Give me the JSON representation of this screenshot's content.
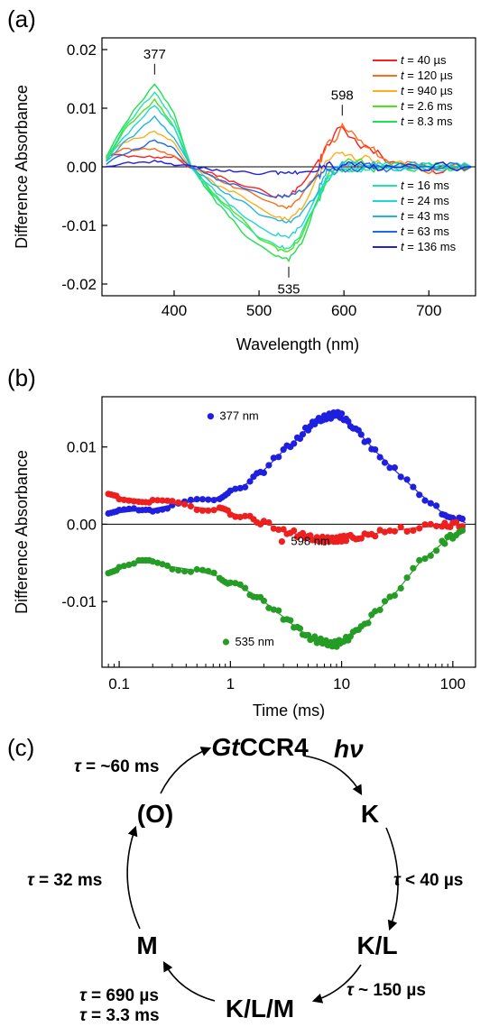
{
  "chart_data": [
    {
      "panel": "(a)",
      "type": "line",
      "xlabel": "Wavelength (nm)",
      "ylabel": "Difference Absorbance",
      "xlim": [
        315,
        755
      ],
      "ylim": [
        -0.022,
        0.022
      ],
      "x_ticks": [
        "400",
        "500",
        "600",
        "700"
      ],
      "x_tick_values": [
        400,
        500,
        600,
        700
      ],
      "y_ticks": [
        "0.02",
        "0.01",
        "0.00",
        "-0.01",
        "-0.02"
      ],
      "y_tick_values": [
        0.02,
        0.01,
        0.0,
        -0.01,
        -0.02
      ],
      "zero_line": true,
      "annotations": [
        {
          "text": "377",
          "x": 377,
          "y": 0.0145
        },
        {
          "text": "598",
          "x": 598,
          "y": 0.0075
        },
        {
          "text": "535",
          "x": 535,
          "y": -0.0158
        }
      ],
      "legend_position": "right",
      "series": [
        {
          "label_t": "t",
          "label_rest": " =  40 µs",
          "color": "#ff1f1f",
          "x": [
            320,
            340,
            377,
            400,
            420,
            450,
            480,
            500,
            520,
            535,
            550,
            570,
            580,
            598,
            620,
            650,
            700,
            750
          ],
          "y": [
            0.002,
            0.002,
            0.0015,
            0.0015,
            0.0,
            -0.0015,
            -0.003,
            -0.004,
            -0.005,
            -0.005,
            -0.003,
            0.001,
            0.004,
            0.007,
            0.004,
            0.001,
            -0.0005,
            0.0
          ]
        },
        {
          "label_t": "t",
          "label_rest": " = 120 µs",
          "color": "#ff6a1a",
          "x": [
            320,
            340,
            377,
            400,
            420,
            450,
            480,
            500,
            520,
            535,
            550,
            570,
            580,
            598,
            620,
            650,
            700,
            750
          ],
          "y": [
            0.002,
            0.003,
            0.003,
            0.002,
            0.0,
            -0.002,
            -0.004,
            -0.005,
            -0.0065,
            -0.007,
            -0.005,
            0.0,
            0.0035,
            0.0065,
            0.004,
            0.001,
            -0.0005,
            0.0
          ]
        },
        {
          "label_t": "t",
          "label_rest": " = 940 µs",
          "color": "#ffae1a",
          "x": [
            320,
            340,
            377,
            400,
            420,
            450,
            480,
            500,
            520,
            535,
            550,
            570,
            580,
            598,
            620,
            650,
            700,
            750
          ],
          "y": [
            0.0015,
            0.004,
            0.006,
            0.004,
            0.0,
            -0.003,
            -0.005,
            -0.007,
            -0.0085,
            -0.009,
            -0.007,
            -0.002,
            0.001,
            0.003,
            0.0015,
            0.0005,
            0.0,
            0.0
          ]
        },
        {
          "label_t": "t",
          "label_rest": " = 2.6 ms",
          "color": "#4be61a",
          "x": [
            320,
            340,
            377,
            400,
            420,
            450,
            480,
            500,
            520,
            535,
            550,
            570,
            580,
            598,
            620,
            650,
            700,
            750
          ],
          "y": [
            0.001,
            0.006,
            0.0115,
            0.007,
            0.0,
            -0.005,
            -0.009,
            -0.012,
            -0.014,
            -0.0145,
            -0.012,
            -0.005,
            -0.002,
            0.0005,
            0.0005,
            0.0,
            0.0,
            0.0
          ]
        },
        {
          "label_t": "t",
          "label_rest": " = 8.3 ms",
          "color": "#1fe050",
          "x": [
            320,
            340,
            377,
            400,
            420,
            450,
            480,
            500,
            520,
            535,
            550,
            570,
            580,
            598,
            620,
            650,
            700,
            750
          ],
          "y": [
            0.0015,
            0.007,
            0.0142,
            0.009,
            0.0,
            -0.006,
            -0.011,
            -0.0135,
            -0.0152,
            -0.0158,
            -0.013,
            -0.006,
            -0.002,
            0.0,
            0.0,
            0.0,
            0.0,
            0.0
          ]
        },
        {
          "label_t": "t",
          "label_rest": " =  16 ms",
          "color": "#1fe6a0",
          "x": [
            320,
            340,
            377,
            400,
            420,
            450,
            480,
            500,
            520,
            535,
            550,
            570,
            580,
            598,
            620,
            650,
            700,
            750
          ],
          "y": [
            0.0015,
            0.0065,
            0.0128,
            0.008,
            0.0,
            -0.0055,
            -0.0095,
            -0.012,
            -0.0135,
            -0.014,
            -0.0115,
            -0.005,
            -0.002,
            0.0,
            0.0,
            0.0,
            0.0,
            0.0
          ]
        },
        {
          "label_t": "t",
          "label_rest": " =  24 ms",
          "color": "#1fd6d6",
          "x": [
            320,
            340,
            377,
            400,
            420,
            450,
            480,
            500,
            520,
            535,
            550,
            570,
            580,
            598,
            620,
            650,
            700,
            750
          ],
          "y": [
            0.001,
            0.005,
            0.0105,
            0.0065,
            0.0,
            -0.0045,
            -0.008,
            -0.0105,
            -0.0115,
            -0.012,
            -0.01,
            -0.0045,
            -0.0015,
            0.0,
            0.0,
            0.0,
            0.0,
            0.0
          ]
        },
        {
          "label_t": "t",
          "label_rest": " =  43 ms",
          "color": "#1fb4e6",
          "x": [
            320,
            340,
            377,
            400,
            420,
            450,
            480,
            500,
            520,
            535,
            550,
            570,
            580,
            598,
            620,
            650,
            700,
            750
          ],
          "y": [
            0.001,
            0.004,
            0.0085,
            0.005,
            0.0,
            -0.0035,
            -0.006,
            -0.008,
            -0.009,
            -0.0095,
            -0.008,
            -0.0035,
            -0.001,
            0.0,
            0.0,
            0.0,
            0.0,
            0.0
          ]
        },
        {
          "label_t": "t",
          "label_rest": " =  63 ms",
          "color": "#1f6ae6",
          "x": [
            320,
            340,
            377,
            400,
            420,
            450,
            480,
            500,
            520,
            535,
            550,
            570,
            580,
            598,
            620,
            650,
            700,
            750
          ],
          "y": [
            0.0005,
            0.002,
            0.0045,
            0.003,
            0.0,
            -0.002,
            -0.0035,
            -0.0045,
            -0.005,
            -0.005,
            -0.004,
            -0.002,
            -0.0005,
            0.0,
            0.0,
            0.0,
            0.0,
            0.0
          ]
        },
        {
          "label_t": "t",
          "label_rest": " = 136 ms",
          "color": "#1f1fe6",
          "x": [
            320,
            340,
            377,
            400,
            420,
            450,
            480,
            500,
            520,
            535,
            550,
            570,
            580,
            598,
            620,
            650,
            700,
            750
          ],
          "y": [
            0.0,
            0.0005,
            0.001,
            0.0005,
            0.0,
            -0.0005,
            -0.001,
            -0.001,
            -0.001,
            -0.001,
            -0.001,
            -0.0005,
            0.0,
            0.0,
            0.0,
            0.0,
            0.0,
            0.0
          ]
        }
      ]
    },
    {
      "panel": "(b)",
      "type": "scatter",
      "xlabel": "Time (ms)",
      "ylabel": "Difference Absorbance",
      "x_scale": "log",
      "xlim": [
        0.07,
        160
      ],
      "ylim": [
        -0.0185,
        0.0165
      ],
      "x_ticks": [
        "0.1",
        "1",
        "10",
        "100"
      ],
      "x_tick_values": [
        0.1,
        1,
        10,
        100
      ],
      "y_ticks": [
        "0.01",
        "0.00",
        "-0.01"
      ],
      "y_tick_values": [
        0.01,
        0.0,
        -0.01
      ],
      "zero_line": true,
      "series": [
        {
          "name": "377 nm",
          "color": "#1f1fe0",
          "x": [
            0.08,
            0.1,
            0.15,
            0.2,
            0.3,
            0.5,
            0.8,
            1,
            1.5,
            2,
            3,
            4,
            5,
            6,
            7,
            8,
            9,
            10,
            12,
            15,
            20,
            30,
            50,
            80,
            100,
            130
          ],
          "y": [
            0.0012,
            0.0015,
            0.0018,
            0.002,
            0.0025,
            0.003,
            0.0035,
            0.004,
            0.0055,
            0.007,
            0.0095,
            0.011,
            0.0125,
            0.0133,
            0.0138,
            0.014,
            0.0142,
            0.014,
            0.013,
            0.0115,
            0.0095,
            0.007,
            0.004,
            0.0015,
            0.0008,
            0.0002
          ]
        },
        {
          "name": "598 nm",
          "color": "#ee1f1f",
          "x": [
            0.08,
            0.1,
            0.15,
            0.2,
            0.3,
            0.5,
            0.8,
            1,
            1.5,
            2,
            3,
            4,
            5,
            6,
            7,
            8,
            9,
            10,
            12,
            15,
            20,
            30,
            50,
            80,
            100,
            130
          ],
          "y": [
            0.0038,
            0.0035,
            0.0032,
            0.003,
            0.0027,
            0.0022,
            0.0018,
            0.0015,
            0.0008,
            0.0002,
            -0.0008,
            -0.0013,
            -0.0017,
            -0.0019,
            -0.002,
            -0.0021,
            -0.002,
            -0.0019,
            -0.0017,
            -0.0015,
            -0.0012,
            -0.0008,
            -0.0004,
            -0.0002,
            -0.0001,
            0.0
          ]
        },
        {
          "name": "535 nm",
          "color": "#259c25",
          "x": [
            0.08,
            0.1,
            0.15,
            0.2,
            0.3,
            0.5,
            0.8,
            1,
            1.5,
            2,
            3,
            4,
            5,
            6,
            7,
            8,
            9,
            10,
            12,
            15,
            20,
            30,
            50,
            80,
            100,
            130
          ],
          "y": [
            -0.006,
            -0.0055,
            -0.005,
            -0.005,
            -0.0055,
            -0.006,
            -0.0068,
            -0.0075,
            -0.0088,
            -0.01,
            -0.012,
            -0.0135,
            -0.0145,
            -0.015,
            -0.0153,
            -0.0155,
            -0.0155,
            -0.0152,
            -0.0145,
            -0.0135,
            -0.0115,
            -0.009,
            -0.005,
            -0.0025,
            -0.0015,
            -0.0005
          ]
        }
      ]
    }
  ],
  "panel_c": {
    "label": "(c)",
    "nodes": {
      "top_italic": "Gt",
      "top_rest": "CCR4",
      "k": "K",
      "kl": "K/L",
      "klm": "K/L/M",
      "m": "M",
      "o": "(O)"
    },
    "light": "hν",
    "taus": {
      "t1": " = ~60 ms",
      "t2": " < 40 µs",
      "t3": " ~ 150 µs",
      "t4a": " = 690 µs",
      "t4b": " = 3.3 ms",
      "t5": " = 32 ms"
    },
    "tau_symbol": "τ"
  }
}
